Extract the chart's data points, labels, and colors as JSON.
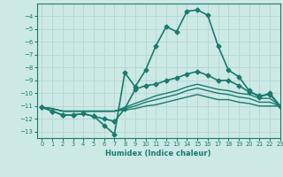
{
  "xlabel": "Humidex (Indice chaleur)",
  "bg_color": "#cce9e5",
  "grid_color": "#b8d8d4",
  "line_color": "#1a7a6e",
  "xlim": [
    -0.5,
    23
  ],
  "ylim": [
    -13.5,
    -3.0
  ],
  "yticks": [
    -13,
    -12,
    -11,
    -10,
    -9,
    -8,
    -7,
    -6,
    -5,
    -4
  ],
  "xticks": [
    0,
    1,
    2,
    3,
    4,
    5,
    6,
    7,
    8,
    9,
    10,
    11,
    12,
    13,
    14,
    15,
    16,
    17,
    18,
    19,
    20,
    21,
    22,
    23
  ],
  "lines": [
    {
      "x": [
        0,
        1,
        2,
        3,
        4,
        5,
        6,
        7,
        8,
        9,
        10,
        11,
        12,
        13,
        14,
        15,
        16,
        17,
        18,
        19,
        20,
        21,
        22,
        23
      ],
      "y": [
        -11.1,
        -11.4,
        -11.7,
        -11.7,
        -11.6,
        -11.8,
        -12.5,
        -13.2,
        -8.4,
        -9.5,
        -8.2,
        -6.3,
        -4.8,
        -5.2,
        -3.6,
        -3.5,
        -3.9,
        -6.3,
        -8.2,
        -8.7,
        -9.8,
        -10.3,
        -10.0,
        -11.0
      ],
      "marker": "D",
      "markersize": 2.5,
      "linewidth": 1.2,
      "zorder": 5
    },
    {
      "x": [
        0,
        1,
        2,
        3,
        4,
        5,
        6,
        7,
        8,
        9,
        10,
        11,
        12,
        13,
        14,
        15,
        16,
        17,
        18,
        19,
        20,
        21,
        22,
        23
      ],
      "y": [
        -11.1,
        -11.4,
        -11.7,
        -11.7,
        -11.6,
        -11.8,
        -12.0,
        -12.2,
        -11.2,
        -9.7,
        -9.4,
        -9.3,
        -9.0,
        -8.8,
        -8.5,
        -8.3,
        -8.6,
        -9.0,
        -9.0,
        -9.4,
        -9.9,
        -10.2,
        -10.1,
        -11.0
      ],
      "marker": "D",
      "markersize": 2.5,
      "linewidth": 1.2,
      "zorder": 4
    },
    {
      "x": [
        0,
        1,
        2,
        3,
        4,
        5,
        6,
        7,
        8,
        9,
        10,
        11,
        12,
        13,
        14,
        15,
        16,
        17,
        18,
        19,
        20,
        21,
        22,
        23
      ],
      "y": [
        -11.1,
        -11.2,
        -11.4,
        -11.4,
        -11.4,
        -11.4,
        -11.4,
        -11.4,
        -11.1,
        -10.8,
        -10.5,
        -10.2,
        -10.0,
        -9.8,
        -9.5,
        -9.3,
        -9.5,
        -9.7,
        -9.8,
        -10.0,
        -10.1,
        -10.4,
        -10.4,
        -11.0
      ],
      "marker": null,
      "markersize": 0,
      "linewidth": 1.0,
      "zorder": 3
    },
    {
      "x": [
        0,
        1,
        2,
        3,
        4,
        5,
        6,
        7,
        8,
        9,
        10,
        11,
        12,
        13,
        14,
        15,
        16,
        17,
        18,
        19,
        20,
        21,
        22,
        23
      ],
      "y": [
        -11.1,
        -11.2,
        -11.4,
        -11.4,
        -11.4,
        -11.4,
        -11.4,
        -11.4,
        -11.2,
        -11.0,
        -10.7,
        -10.5,
        -10.3,
        -10.1,
        -9.8,
        -9.6,
        -9.8,
        -10.0,
        -10.1,
        -10.3,
        -10.4,
        -10.7,
        -10.7,
        -11.0
      ],
      "marker": null,
      "markersize": 0,
      "linewidth": 1.0,
      "zorder": 3
    },
    {
      "x": [
        0,
        1,
        2,
        3,
        4,
        5,
        6,
        7,
        8,
        9,
        10,
        11,
        12,
        13,
        14,
        15,
        16,
        17,
        18,
        19,
        20,
        21,
        22,
        23
      ],
      "y": [
        -11.1,
        -11.2,
        -11.4,
        -11.4,
        -11.4,
        -11.4,
        -11.4,
        -11.4,
        -11.3,
        -11.2,
        -11.0,
        -10.9,
        -10.7,
        -10.5,
        -10.3,
        -10.1,
        -10.3,
        -10.5,
        -10.5,
        -10.7,
        -10.8,
        -11.0,
        -11.0,
        -11.0
      ],
      "marker": null,
      "markersize": 0,
      "linewidth": 1.0,
      "zorder": 3
    }
  ]
}
